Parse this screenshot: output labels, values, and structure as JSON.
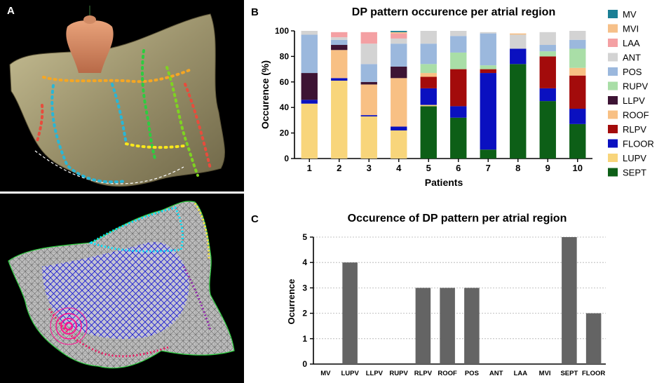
{
  "panels": {
    "a_label": "A",
    "b_label": "B",
    "c_label": "C"
  },
  "images": {
    "top_render": "3D left-atrium anatomical map with ablation points and torso orientation icon",
    "bottom_mesh": "Triangulated atrial surface mesh colored by region"
  },
  "series_colors": {
    "MV": "#1b7f95",
    "MVI": "#f6c089",
    "LAA": "#f4a0a3",
    "ANT": "#d3d3d3",
    "POS": "#9bb8dd",
    "RUPV": "#a9dea7",
    "LLPV": "#3d1434",
    "ROOF": "#f8c084",
    "RLPV": "#a30b0b",
    "FLOOR": "#0a10c0",
    "LUPV": "#f8d57b",
    "SEPT": "#0d5f17"
  },
  "chart_data": [
    {
      "type": "bar",
      "stacked": true,
      "title": "DP pattern occurence per atrial region",
      "xlabel": "Patients",
      "ylabel": "Occurence (%)",
      "ylim": [
        0,
        100
      ],
      "yticks": [
        0,
        20,
        40,
        60,
        80,
        100
      ],
      "categories": [
        "1",
        "2",
        "3",
        "4",
        "5",
        "6",
        "7",
        "8",
        "9",
        "10"
      ],
      "legend_position": "right",
      "legend": [
        "MV",
        "MVI",
        "LAA",
        "ANT",
        "POS",
        "RUPV",
        "LLPV",
        "ROOF",
        "RLPV",
        "FLOOR",
        "LUPV",
        "SEPT"
      ],
      "series": [
        {
          "name": "SEPT",
          "values": [
            0,
            0,
            0,
            0,
            41,
            32,
            7,
            74,
            45,
            27
          ]
        },
        {
          "name": "LUPV",
          "values": [
            43,
            61,
            33,
            22,
            1,
            0,
            0,
            0,
            0,
            0
          ]
        },
        {
          "name": "FLOOR",
          "values": [
            3,
            2,
            1,
            3,
            13,
            9,
            60,
            12,
            10,
            12
          ]
        },
        {
          "name": "RLPV",
          "values": [
            0,
            0,
            0,
            0,
            9,
            29,
            3,
            0,
            25,
            26
          ]
        },
        {
          "name": "ROOF",
          "values": [
            0,
            22,
            24,
            38,
            3,
            0,
            0,
            0,
            0,
            6
          ]
        },
        {
          "name": "LLPV",
          "values": [
            21,
            4,
            2,
            9,
            0,
            0,
            0,
            0,
            0,
            0
          ]
        },
        {
          "name": "RUPV",
          "values": [
            0,
            0,
            0,
            0,
            7,
            13,
            3,
            0,
            4,
            15
          ]
        },
        {
          "name": "POS",
          "values": [
            30,
            4,
            14,
            18,
            16,
            13,
            25,
            0,
            5,
            7
          ]
        },
        {
          "name": "ANT",
          "values": [
            3,
            2,
            16,
            4,
            10,
            4,
            1,
            11,
            10,
            7
          ]
        },
        {
          "name": "LAA",
          "values": [
            0,
            4,
            9,
            4,
            0,
            0,
            0,
            0,
            0,
            0
          ]
        },
        {
          "name": "MVI",
          "values": [
            0,
            0,
            0,
            1,
            0,
            0,
            0,
            1,
            0,
            0
          ]
        },
        {
          "name": "MV",
          "values": [
            0,
            0,
            0,
            1,
            0,
            0,
            0,
            0,
            0,
            0
          ]
        }
      ]
    },
    {
      "type": "bar",
      "title": "Occurence of DP pattern per atrial region",
      "xlabel": "",
      "ylabel": "Ocurrence",
      "ylim": [
        0,
        5
      ],
      "yticks": [
        0,
        1,
        2,
        3,
        4,
        5
      ],
      "grid": true,
      "categories": [
        "MV",
        "LUPV",
        "LLPV",
        "RUPV",
        "RLPV",
        "ROOF",
        "POS",
        "ANT",
        "LAA",
        "MVI",
        "SEPT",
        "FLOOR"
      ],
      "values": [
        0,
        4,
        0,
        0,
        3,
        3,
        3,
        0,
        0,
        0,
        5,
        2
      ],
      "bar_color": "#646464"
    }
  ]
}
